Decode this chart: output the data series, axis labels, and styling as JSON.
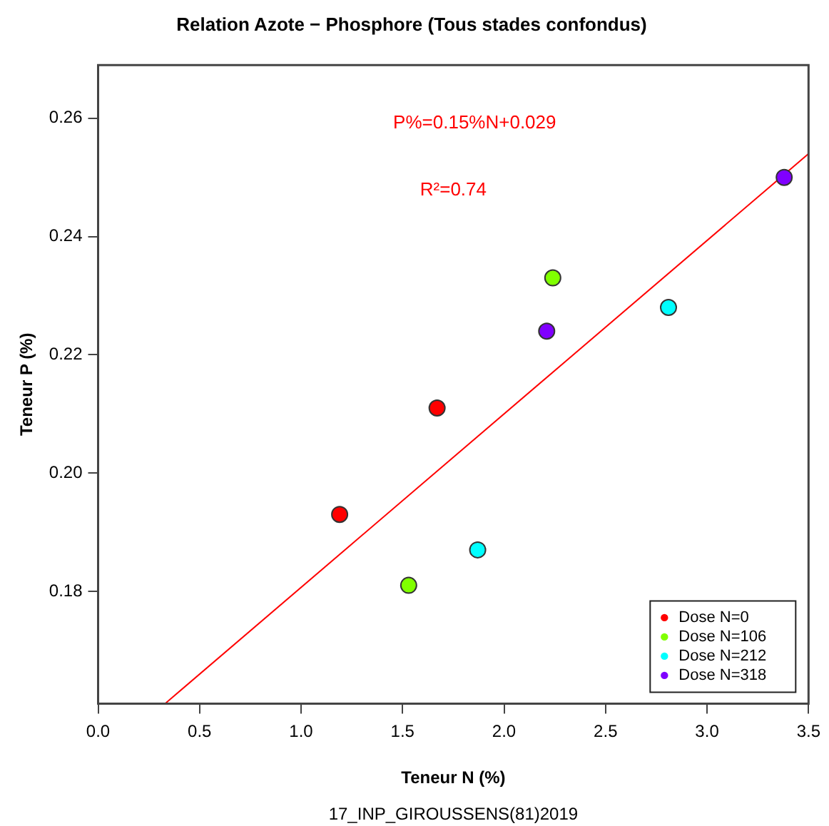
{
  "chart_data": {
    "type": "scatter",
    "title": "Relation Azote − Phosphore (Tous stades confondus)",
    "xlabel": "Teneur N (%)",
    "ylabel": "Teneur P (%)",
    "annotations": [
      "P%=0.15%N+0.029",
      "R²=0.74",
      "17_INP_GIROUSSENS(81)2019"
    ],
    "series": [
      {
        "name": "Dose N=0",
        "color": "#ff0000",
        "x": [
          1.19,
          1.67
        ],
        "values": [
          0.193,
          0.211
        ]
      },
      {
        "name": "Dose N=106",
        "color": "#80ff00",
        "x": [
          1.53,
          2.24
        ],
        "values": [
          0.181,
          0.233
        ]
      },
      {
        "name": "Dose N=212",
        "color": "#00ffff",
        "x": [
          1.87,
          2.81
        ],
        "values": [
          0.187,
          0.228
        ]
      },
      {
        "name": "Dose N=318",
        "color": "#8000ff",
        "x": [
          2.21,
          3.38
        ],
        "values": [
          0.224,
          0.25
        ]
      },
      {
        "type": "line",
        "color": "#ff0000",
        "x": [
          0.33,
          3.5
        ],
        "values": [
          0.161,
          0.254
        ],
        "marker": "none"
      }
    ],
    "xlim": [
      0,
      3.5
    ],
    "xticks": [
      {
        "value": 0,
        "label": "0.0"
      },
      0.5,
      {
        "value": 1,
        "label": "1.0"
      },
      1.5,
      {
        "value": 2,
        "label": "2.0"
      },
      2.5,
      {
        "value": 3,
        "label": "3.0"
      },
      3.5
    ],
    "ylim": [
      0.161,
      0.269
    ],
    "yticks": [
      0.18,
      {
        "value": 0.2,
        "label": "0.20"
      },
      0.22,
      0.24,
      0.26
    ],
    "grid": false,
    "legend": "bottom right",
    "marker": "circle"
  }
}
